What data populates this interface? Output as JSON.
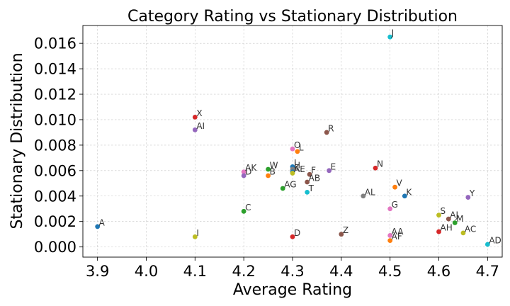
{
  "chart_data": {
    "type": "scatter",
    "title": "Category Rating vs Stationary Distribution",
    "xlabel": "Average Rating",
    "ylabel": "Stationary Distribution",
    "xlim": [
      3.87,
      4.73
    ],
    "ylim": [
      -0.0008,
      0.0174
    ],
    "xticks": [
      "3.9",
      "4.0",
      "4.1",
      "4.2",
      "4.3",
      "4.4",
      "4.5",
      "4.6",
      "4.7"
    ],
    "yticks": [
      "0.000",
      "0.002",
      "0.004",
      "0.006",
      "0.008",
      "0.010",
      "0.012",
      "0.014",
      "0.016"
    ],
    "grid": true,
    "points": [
      {
        "label": "J",
        "x": 4.5,
        "y": 0.0165,
        "color": "#17becf"
      },
      {
        "label": "X",
        "x": 4.1,
        "y": 0.0102,
        "color": "#d62728"
      },
      {
        "label": "AI",
        "x": 4.1,
        "y": 0.0092,
        "color": "#9467bd"
      },
      {
        "label": "R",
        "x": 4.37,
        "y": 0.009,
        "color": "#8c564b"
      },
      {
        "label": "O",
        "x": 4.3,
        "y": 0.0077,
        "color": "#e377c2"
      },
      {
        "label": "L",
        "x": 4.31,
        "y": 0.0075,
        "color": "#ff7f0e"
      },
      {
        "label": "I",
        "x": 4.3,
        "y": 0.0063,
        "color": "#1f77b4"
      },
      {
        "label": "N",
        "x": 4.47,
        "y": 0.0062,
        "color": "#d62728"
      },
      {
        "label": "W",
        "x": 4.25,
        "y": 0.0061,
        "color": "#2ca02c"
      },
      {
        "label": "H",
        "x": 4.3,
        "y": 0.0061,
        "color": "#7f7f7f"
      },
      {
        "label": "E",
        "x": 4.375,
        "y": 0.006,
        "color": "#9467bd"
      },
      {
        "label": "AK",
        "x": 4.2,
        "y": 0.0059,
        "color": "#e377c2"
      },
      {
        "label": "K",
        "x": 4.3,
        "y": 0.0059,
        "color": "#1f77b4"
      },
      {
        "label": "AE",
        "x": 4.3,
        "y": 0.0058,
        "color": "#bcbd22"
      },
      {
        "label": "F",
        "x": 4.335,
        "y": 0.0057,
        "color": "#8c564b"
      },
      {
        "label": "D",
        "x": 4.2,
        "y": 0.0056,
        "color": "#9467bd"
      },
      {
        "label": "B",
        "x": 4.25,
        "y": 0.0056,
        "color": "#ff7f0e"
      },
      {
        "label": "AB",
        "x": 4.33,
        "y": 0.0051,
        "color": "#8c564b"
      },
      {
        "label": "V",
        "x": 4.51,
        "y": 0.0047,
        "color": "#ff7f0e"
      },
      {
        "label": "AG",
        "x": 4.28,
        "y": 0.0046,
        "color": "#2ca02c"
      },
      {
        "label": "T",
        "x": 4.33,
        "y": 0.0043,
        "color": "#17becf"
      },
      {
        "label": "K",
        "x": 4.53,
        "y": 0.004,
        "color": "#1f77b4"
      },
      {
        "label": "AL",
        "x": 4.445,
        "y": 0.004,
        "color": "#7f7f7f"
      },
      {
        "label": "Y",
        "x": 4.66,
        "y": 0.0039,
        "color": "#9467bd"
      },
      {
        "label": "G",
        "x": 4.5,
        "y": 0.003,
        "color": "#e377c2"
      },
      {
        "label": "C",
        "x": 4.2,
        "y": 0.0028,
        "color": "#2ca02c"
      },
      {
        "label": "S",
        "x": 4.6,
        "y": 0.0025,
        "color": "#bcbd22"
      },
      {
        "label": "AJ",
        "x": 4.62,
        "y": 0.0022,
        "color": "#8c564b"
      },
      {
        "label": "M",
        "x": 4.633,
        "y": 0.0019,
        "color": "#2ca02c"
      },
      {
        "label": "A",
        "x": 3.9,
        "y": 0.0016,
        "color": "#1f77b4"
      },
      {
        "label": "AH",
        "x": 4.6,
        "y": 0.0012,
        "color": "#d62728"
      },
      {
        "label": "AC",
        "x": 4.65,
        "y": 0.0011,
        "color": "#bcbd22"
      },
      {
        "label": "Z",
        "x": 4.4,
        "y": 0.001,
        "color": "#8c564b"
      },
      {
        "label": "AA",
        "x": 4.5,
        "y": 0.0009,
        "color": "#e377c2"
      },
      {
        "label": "I",
        "x": 4.1,
        "y": 0.0008,
        "color": "#bcbd22"
      },
      {
        "label": "D",
        "x": 4.3,
        "y": 0.0008,
        "color": "#d62728"
      },
      {
        "label": "AF",
        "x": 4.5,
        "y": 0.0005,
        "color": "#ff7f0e"
      },
      {
        "label": "AD",
        "x": 4.7,
        "y": 0.0002,
        "color": "#17becf"
      }
    ]
  }
}
